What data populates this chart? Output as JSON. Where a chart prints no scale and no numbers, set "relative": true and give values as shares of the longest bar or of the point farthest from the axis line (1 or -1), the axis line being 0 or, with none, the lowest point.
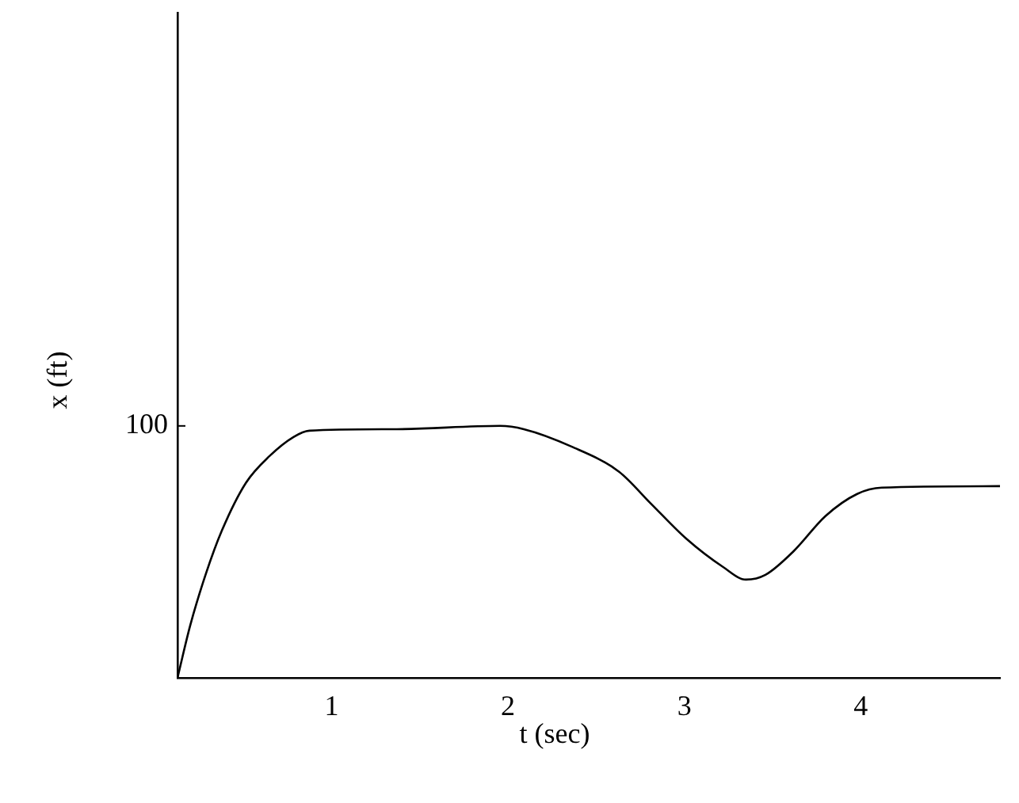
{
  "chart_data": {
    "type": "line",
    "relative": true,
    "xlabel": "t (sec)",
    "ylabel": "x (ft)",
    "color": "#000000",
    "grid": false,
    "legend": false,
    "marker": "none",
    "line_style": "solid",
    "xlim": [
      0.126,
      4.79
    ],
    "xticks": [
      1,
      2,
      3,
      4
    ],
    "annotations": [
      "100"
    ],
    "x": [
      0.126,
      0.198,
      0.288,
      0.378,
      0.514,
      0.649,
      0.784,
      0.874,
      1.369,
      1.955,
      2.09,
      2.36,
      2.63,
      2.81,
      3.01,
      3.22,
      3.35,
      3.46,
      3.62,
      3.8,
      3.98,
      4.12,
      4.79
    ],
    "values": [
      0,
      0.208,
      0.415,
      0.585,
      0.774,
      0.881,
      0.956,
      0.981,
      0.987,
      1,
      0.987,
      0.918,
      0.818,
      0.692,
      0.553,
      0.44,
      0.39,
      0.409,
      0.503,
      0.642,
      0.73,
      0.755,
      0.761
    ]
  }
}
